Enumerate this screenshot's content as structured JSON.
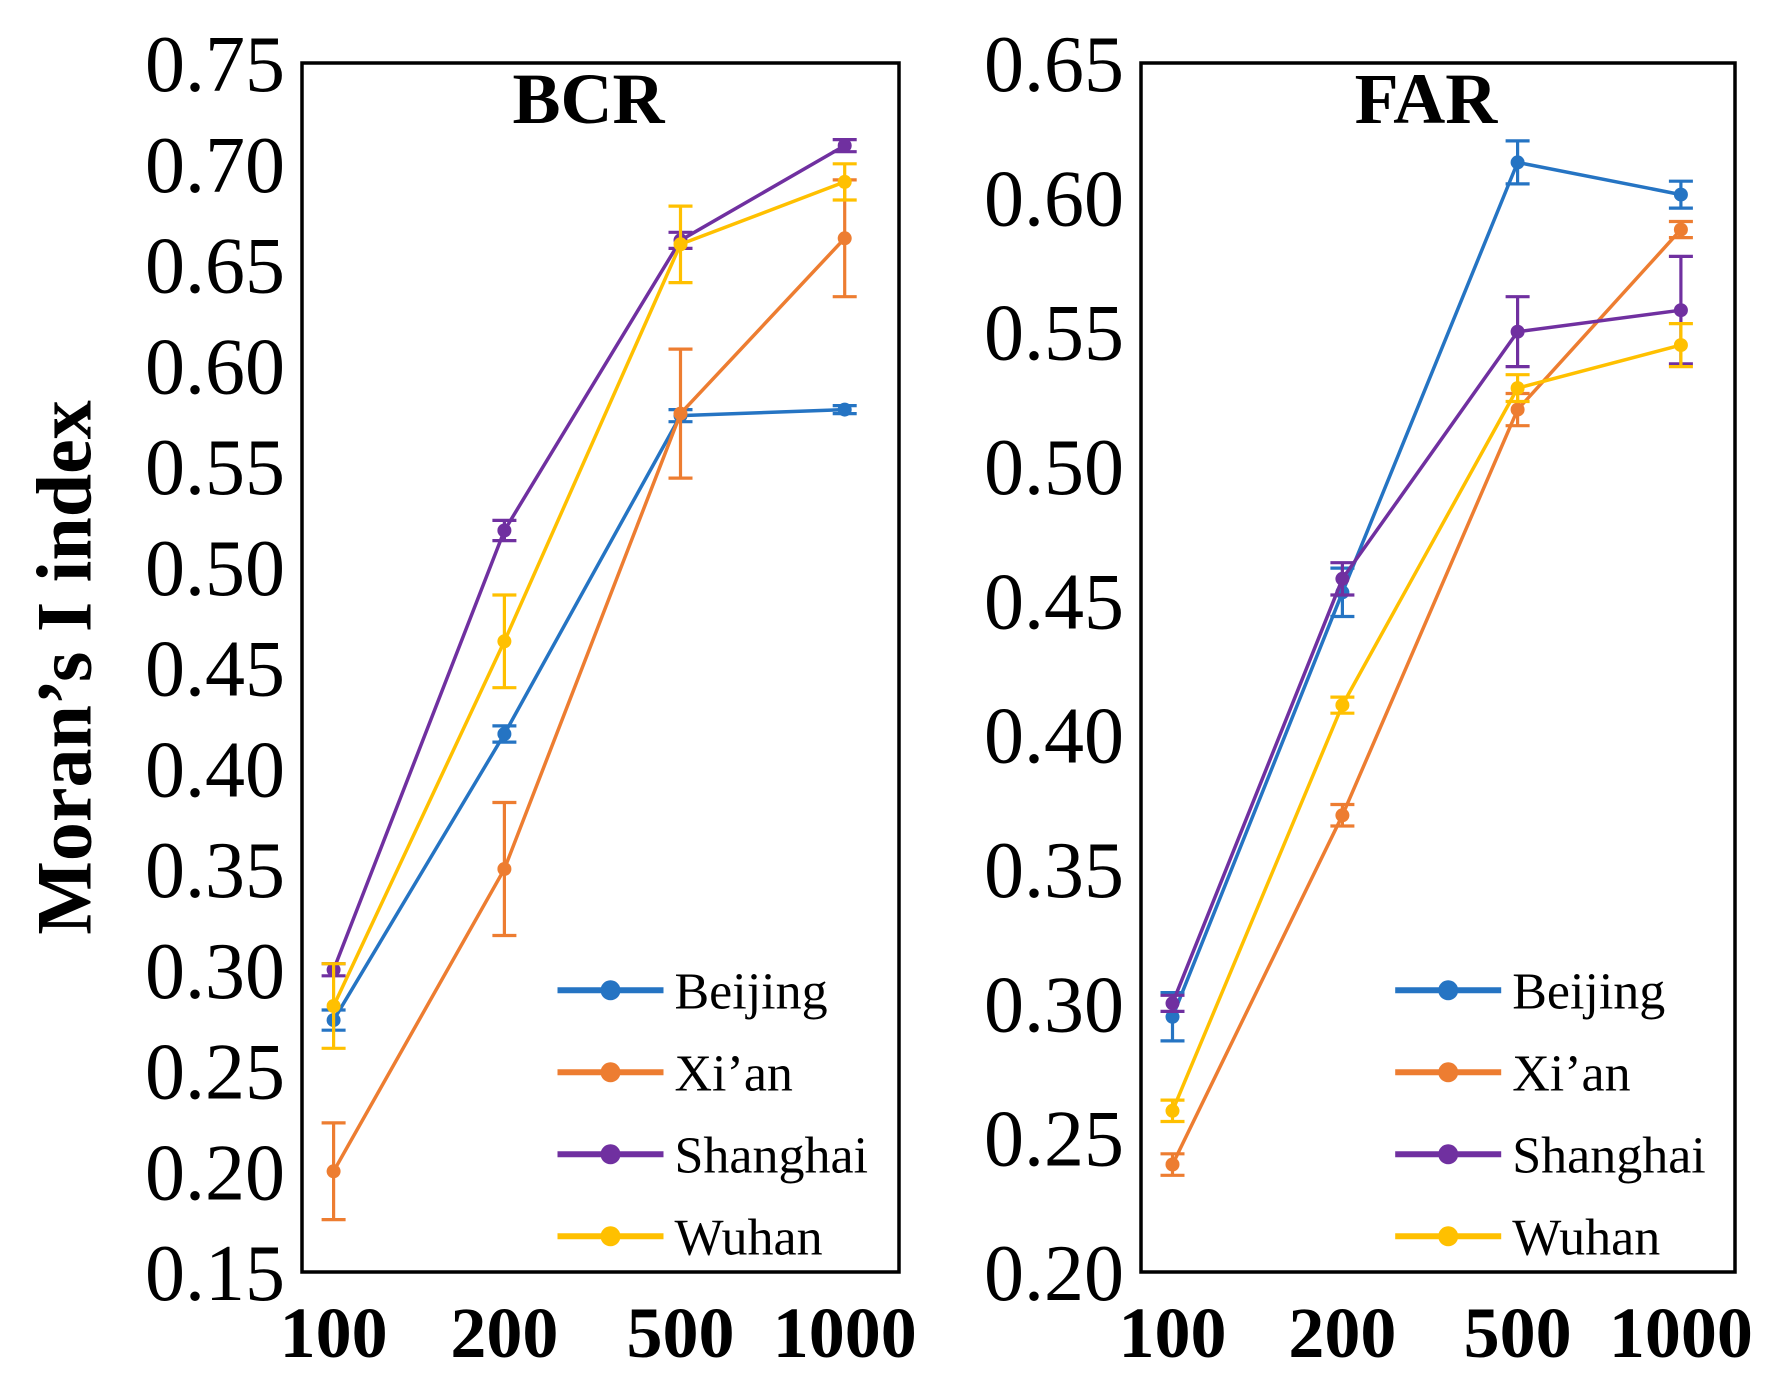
{
  "chart_data": [
    {
      "type": "line",
      "title": "BCR",
      "xlabel": "",
      "ylabel": "Moran’s I index",
      "categories": [
        "100",
        "200",
        "500",
        "1000"
      ],
      "ylim": [
        0.15,
        0.75
      ],
      "ytick_labels": [
        "0.15",
        "0.20",
        "0.25",
        "0.30",
        "0.35",
        "0.40",
        "0.45",
        "0.50",
        "0.55",
        "0.60",
        "0.65",
        "0.70",
        "0.75"
      ],
      "grid": false,
      "legend": "bottom-right",
      "series": [
        {
          "name": "Beijing",
          "color": "#2574C3",
          "values": [
            0.275,
            0.417,
            0.575,
            0.578
          ],
          "errors": [
            0.005,
            0.004,
            0.003,
            0.002
          ]
        },
        {
          "name": "Xi’an",
          "color": "#ED7D31",
          "values": [
            0.2,
            0.35,
            0.576,
            0.663
          ],
          "errors": [
            0.024,
            0.033,
            0.032,
            0.029
          ]
        },
        {
          "name": "Shanghai",
          "color": "#7030A0",
          "values": [
            0.3,
            0.518,
            0.662,
            0.709
          ],
          "errors": [
            0.003,
            0.005,
            0.004,
            0.003
          ]
        },
        {
          "name": "Wuhan",
          "color": "#FFC000",
          "values": [
            0.282,
            0.463,
            0.66,
            0.691
          ],
          "errors": [
            0.021,
            0.023,
            0.019,
            0.009
          ]
        }
      ]
    },
    {
      "type": "line",
      "title": "FAR",
      "xlabel": "",
      "ylabel": "",
      "categories": [
        "100",
        "200",
        "500",
        "1000"
      ],
      "ylim": [
        0.2,
        0.65
      ],
      "ytick_labels": [
        "0.20",
        "0.25",
        "0.30",
        "0.35",
        "0.40",
        "0.45",
        "0.50",
        "0.55",
        "0.60",
        "0.65"
      ],
      "grid": false,
      "legend": "bottom-right",
      "series": [
        {
          "name": "Beijing",
          "color": "#2574C3",
          "values": [
            0.295,
            0.453,
            0.613,
            0.601
          ],
          "errors": [
            0.009,
            0.009,
            0.008,
            0.005
          ]
        },
        {
          "name": "Xi’an",
          "color": "#ED7D31",
          "values": [
            0.24,
            0.37,
            0.521,
            0.588
          ],
          "errors": [
            0.004,
            0.004,
            0.006,
            0.003
          ]
        },
        {
          "name": "Shanghai",
          "color": "#7030A0",
          "values": [
            0.3,
            0.458,
            0.55,
            0.558
          ],
          "errors": [
            0.003,
            0.006,
            0.013,
            0.02
          ]
        },
        {
          "name": "Wuhan",
          "color": "#FFC000",
          "values": [
            0.26,
            0.411,
            0.529,
            0.545
          ],
          "errors": [
            0.004,
            0.003,
            0.005,
            0.008
          ]
        }
      ]
    }
  ]
}
